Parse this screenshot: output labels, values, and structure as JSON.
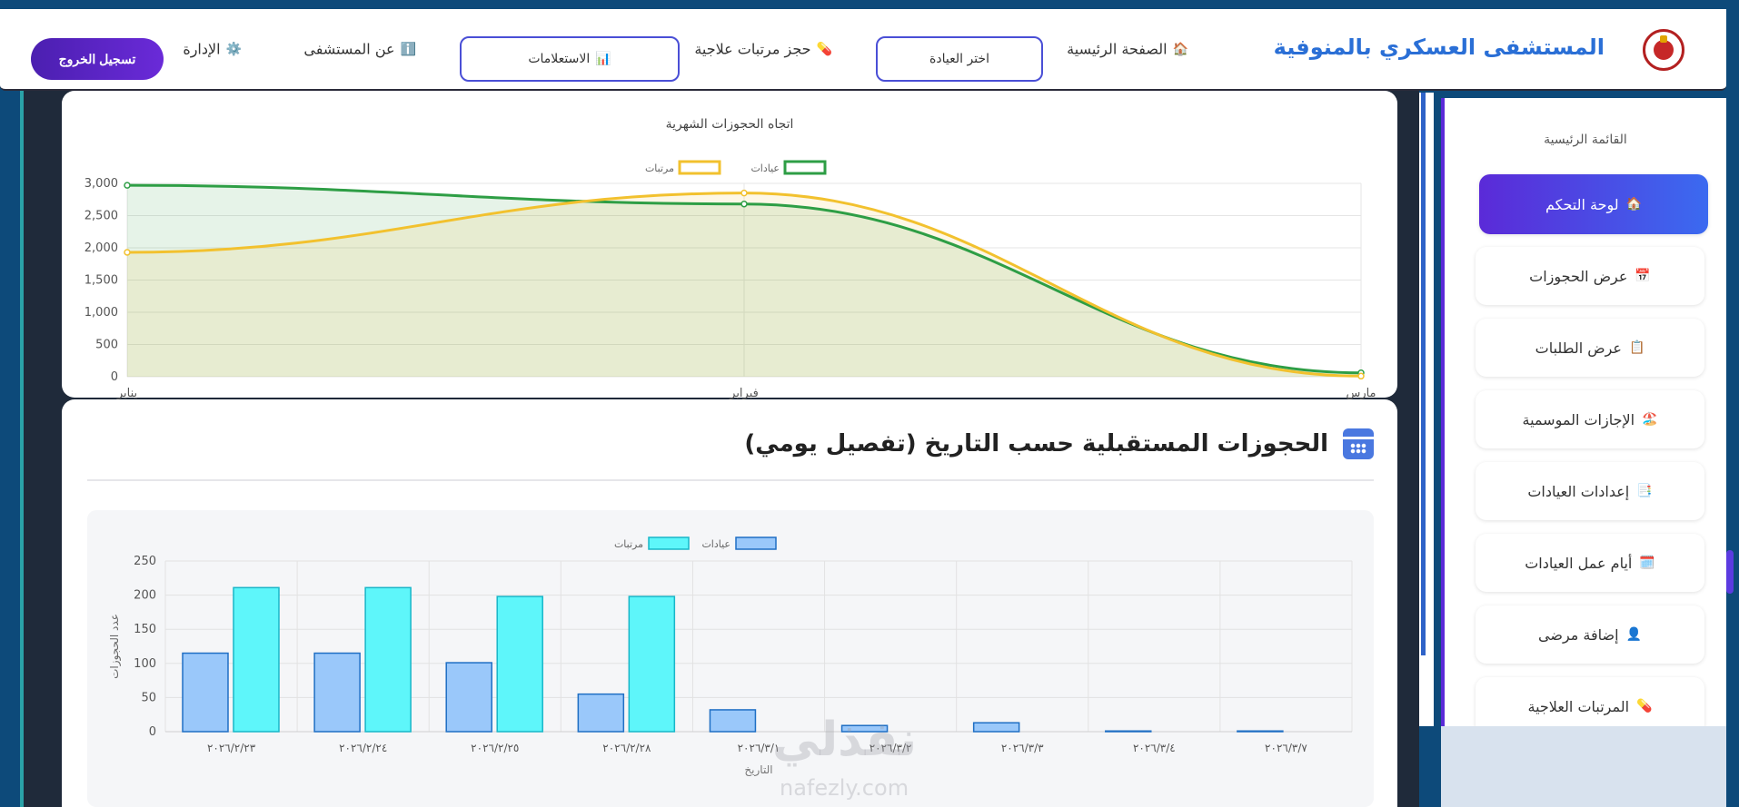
{
  "header": {
    "site_title": "المستشفى العسكري بالمنوفية",
    "nav": {
      "home": "الصفحة الرئيسية",
      "choose_clinic": "اختر العيادة",
      "book": "حجز مرتبات علاجية",
      "inquiries": "الاستعلامات",
      "about": "عن المستشفى",
      "admin": "الإدارة",
      "logout": "تسجيل الخروج"
    },
    "icons": {
      "home": "🏠",
      "book": "💊",
      "inquiries": "📊",
      "about": "ℹ️",
      "admin": "⚙️"
    }
  },
  "sidebar": {
    "title": "القائمة الرئيسية",
    "items": [
      {
        "label": "لوحة التحكم",
        "icon": "🏠"
      },
      {
        "label": "عرض الحجوزات",
        "icon": "📅"
      },
      {
        "label": "عرض الطلبات",
        "icon": "📋"
      },
      {
        "label": "الإجازات الموسمية",
        "icon": "🏖️"
      },
      {
        "label": "إعدادات العيادات",
        "icon": "📑"
      },
      {
        "label": "أيام عمل العيادات",
        "icon": "🗓️"
      },
      {
        "label": "إضافة مرضى",
        "icon": "👤"
      },
      {
        "label": "المرتبات العلاجية",
        "icon": "💊"
      }
    ]
  },
  "section": {
    "title": "الحجوزات المستقبلية حسب التاريخ (تفصيل يومي)"
  },
  "watermark": {
    "brand": "نفذلي",
    "domain": "nafezly.com"
  },
  "chart_data": [
    {
      "type": "line",
      "title": "اتجاه الحجوزات الشهرية",
      "categories": [
        "يناير",
        "فبراير",
        "مارس"
      ],
      "series": [
        {
          "name": "عيادات",
          "values": [
            2970,
            2680,
            60
          ],
          "color": "#2e9e45"
        },
        {
          "name": "مرتبات",
          "values": [
            1930,
            2850,
            10
          ],
          "color": "#f2c12e"
        }
      ],
      "ylim": [
        0,
        3000
      ],
      "yticks": [
        "0",
        "500",
        "1,000",
        "1,500",
        "2,000",
        "2,500",
        "3,000"
      ],
      "legend": "top-center",
      "grid": true
    },
    {
      "type": "bar",
      "categories": [
        "٢٠٢٦/٢/٢٣",
        "٢٠٢٦/٢/٢٤",
        "٢٠٢٦/٢/٢٥",
        "٢٠٢٦/٢/٢٨",
        "٢٠٢٦/٣/١",
        "٢٠٢٦/٣/٢",
        "٢٠٢٦/٣/٣",
        "٢٠٢٦/٣/٤",
        "٢٠٢٦/٣/٧"
      ],
      "series": [
        {
          "name": "عيادات",
          "values": [
            115,
            115,
            101,
            55,
            32,
            9,
            13,
            1,
            1
          ],
          "color": "#9ac8fa",
          "border": "#1f6fc4"
        },
        {
          "name": "مرتبات",
          "values": [
            211,
            211,
            198,
            198,
            0,
            0,
            0,
            0,
            0
          ],
          "color": "#5ef6fa",
          "border": "#18b6c8"
        }
      ],
      "xlabel": "التاريخ",
      "ylabel": "عدد الحجوزات",
      "ylim": [
        0,
        250
      ],
      "yticks": [
        "0",
        "50",
        "100",
        "150",
        "200",
        "250"
      ],
      "legend": "top-center",
      "grid": true
    }
  ]
}
